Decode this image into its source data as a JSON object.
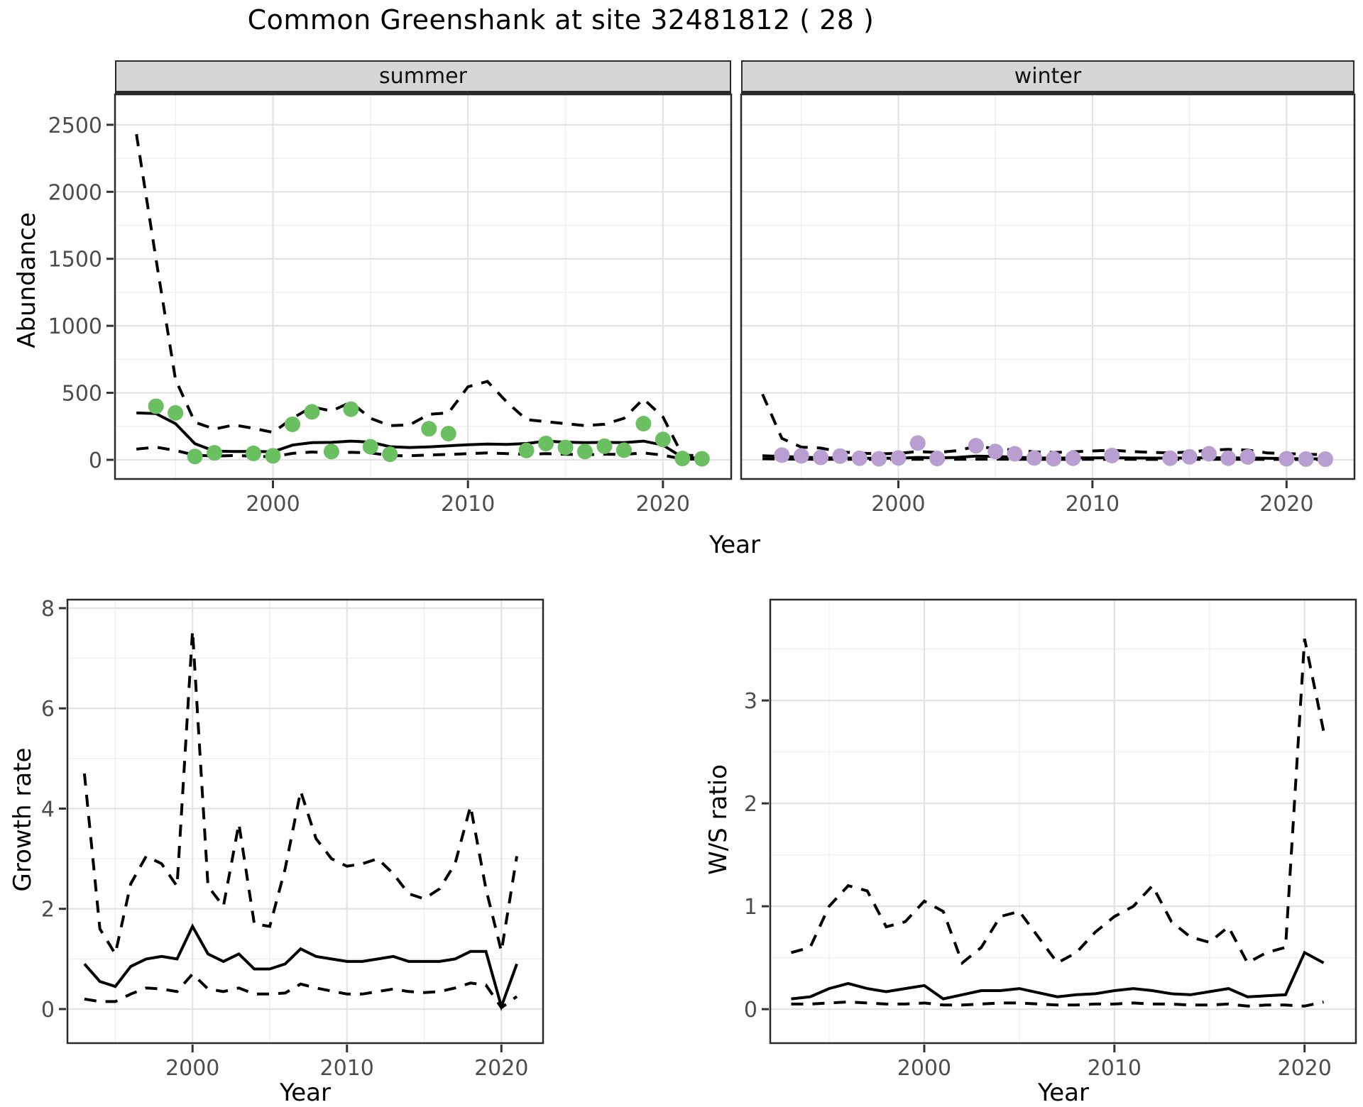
{
  "title": "Common Greenshank at site 32481812 ( 28 )",
  "top": {
    "ylabel": "Abundance",
    "xlabel": "Year",
    "facets": [
      "summer",
      "winter"
    ]
  },
  "bottom_left": {
    "ylabel": "Growth rate",
    "xlabel": "Year"
  },
  "bottom_right": {
    "ylabel": "W/S ratio",
    "xlabel": "Year"
  },
  "colors": {
    "summer_points": "#6ABF61",
    "winter_points": "#B89ED1",
    "lines": "#000000",
    "major_grid": "#e3e3e3",
    "minor_grid": "#f0f0f0",
    "panel_border": "#2a2a2a",
    "tick_text": "#4d4d4d"
  },
  "chart_data": [
    {
      "id": "abundance_summer",
      "type": "line",
      "facet_label": "summer",
      "title": "Common Greenshank at site 32481812 ( 28 )",
      "xlabel": "Year",
      "ylabel": "Abundance",
      "x_ticks": [
        2000,
        2010,
        2020
      ],
      "y_ticks": [
        0,
        500,
        1000,
        1500,
        2000,
        2500
      ],
      "xlim": [
        1991.9,
        2023.5
      ],
      "ylim": [
        -143,
        2727
      ],
      "grid": "major+minor",
      "legend": "none",
      "series": [
        {
          "name": "fitted-median",
          "style": "solid",
          "color": "#000000",
          "x": [
            1993,
            1994,
            1995,
            1996,
            1997,
            1998,
            1999,
            2000,
            2001,
            2002,
            2003,
            2004,
            2005,
            2006,
            2007,
            2008,
            2009,
            2010,
            2011,
            2012,
            2013,
            2014,
            2015,
            2016,
            2017,
            2018,
            2019,
            2020,
            2021,
            2022
          ],
          "y": [
            350,
            345,
            270,
            120,
            65,
            62,
            63,
            60,
            110,
            128,
            130,
            140,
            132,
            98,
            92,
            97,
            105,
            112,
            118,
            115,
            122,
            140,
            132,
            128,
            130,
            128,
            140,
            110,
            18,
            12
          ]
        },
        {
          "name": "upper-95ci",
          "style": "dashed",
          "color": "#000000",
          "x": [
            1993,
            1994,
            1995,
            1996,
            1997,
            1998,
            1999,
            2000,
            2001,
            2002,
            2003,
            2004,
            2005,
            2006,
            2007,
            2008,
            2009,
            2010,
            2011,
            2012,
            2013,
            2014,
            2015,
            2016,
            2017,
            2018,
            2019,
            2020,
            2021,
            2022
          ],
          "y": [
            2430,
            1500,
            600,
            280,
            230,
            260,
            235,
            205,
            310,
            395,
            365,
            430,
            310,
            255,
            260,
            340,
            350,
            545,
            585,
            430,
            300,
            285,
            270,
            255,
            265,
            310,
            455,
            320,
            35,
            30
          ]
        },
        {
          "name": "lower-95ci",
          "style": "dashed",
          "color": "#000000",
          "x": [
            1993,
            1994,
            1995,
            1996,
            1997,
            1998,
            1999,
            2000,
            2001,
            2002,
            2003,
            2004,
            2005,
            2006,
            2007,
            2008,
            2009,
            2010,
            2011,
            2012,
            2013,
            2014,
            2015,
            2016,
            2017,
            2018,
            2019,
            2020,
            2021,
            2022
          ],
          "y": [
            80,
            95,
            70,
            35,
            28,
            32,
            28,
            22,
            48,
            58,
            52,
            56,
            52,
            32,
            30,
            36,
            40,
            46,
            52,
            46,
            42,
            46,
            42,
            38,
            42,
            40,
            52,
            35,
            6,
            5
          ]
        },
        {
          "name": "observed-counts",
          "style": "points",
          "color": "#6ABF61",
          "x": [
            1994,
            1995,
            1996,
            1997,
            1999,
            2000,
            2001,
            2002,
            2003,
            2004,
            2005,
            2006,
            2008,
            2009,
            2013,
            2014,
            2015,
            2016,
            2017,
            2018,
            2019,
            2020,
            2021,
            2022
          ],
          "y": [
            400,
            350,
            25,
            52,
            48,
            30,
            265,
            358,
            62,
            378,
            98,
            42,
            232,
            196,
            70,
            122,
            92,
            62,
            102,
            72,
            270,
            152,
            10,
            8
          ]
        }
      ]
    },
    {
      "id": "abundance_winter",
      "type": "line",
      "facet_label": "winter",
      "xlabel": "Year",
      "ylabel": "Abundance",
      "x_ticks": [
        2000,
        2010,
        2020
      ],
      "y_ticks": [
        0,
        500,
        1000,
        1500,
        2000,
        2500
      ],
      "xlim": [
        1991.9,
        2023.5
      ],
      "ylim": [
        -143,
        2727
      ],
      "grid": "major+minor",
      "legend": "none",
      "series": [
        {
          "name": "fitted-median",
          "style": "solid",
          "color": "#000000",
          "x": [
            1993,
            1994,
            1995,
            1996,
            1997,
            1998,
            1999,
            2000,
            2001,
            2002,
            2003,
            2004,
            2005,
            2006,
            2007,
            2008,
            2009,
            2010,
            2011,
            2012,
            2013,
            2014,
            2015,
            2016,
            2017,
            2018,
            2019,
            2020,
            2021,
            2022
          ],
          "y": [
            30,
            25,
            20,
            15,
            15,
            12,
            12,
            12,
            18,
            15,
            18,
            28,
            25,
            20,
            15,
            13,
            14,
            15,
            16,
            14,
            13,
            13,
            14,
            16,
            15,
            14,
            12,
            10,
            8,
            7
          ]
        },
        {
          "name": "upper-95ci",
          "style": "dashed",
          "color": "#000000",
          "x": [
            1993,
            1994,
            1995,
            1996,
            1997,
            1998,
            1999,
            2000,
            2001,
            2002,
            2003,
            2004,
            2005,
            2006,
            2007,
            2008,
            2009,
            2010,
            2011,
            2012,
            2013,
            2014,
            2015,
            2016,
            2017,
            2018,
            2019,
            2020,
            2021,
            2022
          ],
          "y": [
            490,
            160,
            95,
            88,
            60,
            50,
            45,
            48,
            62,
            55,
            68,
            100,
            85,
            72,
            60,
            55,
            60,
            66,
            72,
            62,
            56,
            52,
            58,
            72,
            78,
            72,
            52,
            46,
            42,
            38
          ]
        },
        {
          "name": "lower-95ci",
          "style": "dashed",
          "color": "#000000",
          "x": [
            1993,
            1994,
            1995,
            1996,
            1997,
            1998,
            1999,
            2000,
            2001,
            2002,
            2003,
            2004,
            2005,
            2006,
            2007,
            2008,
            2009,
            2010,
            2011,
            2012,
            2013,
            2014,
            2015,
            2016,
            2017,
            2018,
            2019,
            2020,
            2021,
            2022
          ],
          "y": [
            8,
            6,
            5,
            4,
            4,
            3,
            3,
            3,
            4,
            4,
            4,
            5,
            5,
            4,
            4,
            3,
            3,
            4,
            4,
            4,
            3,
            3,
            3,
            4,
            4,
            4,
            3,
            3,
            2,
            2
          ]
        },
        {
          "name": "observed-counts",
          "style": "points",
          "color": "#B89ED1",
          "x": [
            1994,
            1995,
            1996,
            1997,
            1998,
            1999,
            2000,
            2001,
            2002,
            2004,
            2005,
            2006,
            2007,
            2008,
            2009,
            2011,
            2014,
            2015,
            2016,
            2017,
            2018,
            2020,
            2021,
            2022
          ],
          "y": [
            35,
            30,
            18,
            28,
            12,
            8,
            14,
            125,
            10,
            105,
            62,
            45,
            14,
            8,
            12,
            32,
            12,
            22,
            45,
            12,
            22,
            8,
            6,
            5
          ]
        }
      ]
    },
    {
      "id": "growth_rate",
      "type": "line",
      "xlabel": "Year",
      "ylabel": "Growth rate",
      "x_ticks": [
        2000,
        2010,
        2020
      ],
      "y_ticks": [
        0,
        2,
        4,
        6,
        8
      ],
      "xlim": [
        1991.9,
        2022.7
      ],
      "ylim": [
        -0.68,
        8.17
      ],
      "grid": "major+minor",
      "legend": "none",
      "series": [
        {
          "name": "growth-median",
          "style": "solid",
          "color": "#000000",
          "x": [
            1993,
            1994,
            1995,
            1996,
            1997,
            1998,
            1999,
            2000,
            2001,
            2002,
            2003,
            2004,
            2005,
            2006,
            2007,
            2008,
            2009,
            2010,
            2011,
            2012,
            2013,
            2014,
            2015,
            2016,
            2017,
            2018,
            2019,
            2020,
            2021
          ],
          "y": [
            0.9,
            0.55,
            0.45,
            0.85,
            1.0,
            1.05,
            1.0,
            1.65,
            1.1,
            0.95,
            1.1,
            0.8,
            0.8,
            0.9,
            1.2,
            1.05,
            1.0,
            0.95,
            0.95,
            1.0,
            1.05,
            0.95,
            0.95,
            0.95,
            1.0,
            1.15,
            1.15,
            0.05,
            0.9
          ]
        },
        {
          "name": "growth-upper-95ci",
          "style": "dashed",
          "color": "#000000",
          "x": [
            1993,
            1994,
            1995,
            1996,
            1997,
            1998,
            1999,
            2000,
            2001,
            2002,
            2003,
            2004,
            2005,
            2006,
            2007,
            2008,
            2009,
            2010,
            2011,
            2012,
            2013,
            2014,
            2015,
            2016,
            2017,
            2018,
            2019,
            2020,
            2021
          ],
          "y": [
            4.7,
            1.6,
            1.1,
            2.5,
            3.05,
            2.9,
            2.45,
            7.55,
            2.45,
            2.05,
            3.7,
            1.7,
            1.65,
            2.8,
            4.35,
            3.4,
            3.0,
            2.85,
            2.9,
            3.0,
            2.7,
            2.3,
            2.2,
            2.4,
            2.9,
            4.05,
            2.4,
            1.15,
            3.05
          ]
        },
        {
          "name": "growth-lower-95ci",
          "style": "dashed",
          "color": "#000000",
          "x": [
            1993,
            1994,
            1995,
            1996,
            1997,
            1998,
            1999,
            2000,
            2001,
            2002,
            2003,
            2004,
            2005,
            2006,
            2007,
            2008,
            2009,
            2010,
            2011,
            2012,
            2013,
            2014,
            2015,
            2016,
            2017,
            2018,
            2019,
            2020,
            2021
          ],
          "y": [
            0.2,
            0.15,
            0.15,
            0.3,
            0.42,
            0.4,
            0.35,
            0.7,
            0.4,
            0.35,
            0.42,
            0.3,
            0.3,
            0.32,
            0.5,
            0.42,
            0.36,
            0.3,
            0.3,
            0.35,
            0.4,
            0.35,
            0.33,
            0.35,
            0.42,
            0.52,
            0.48,
            0.03,
            0.25
          ]
        }
      ]
    },
    {
      "id": "ws_ratio",
      "type": "line",
      "xlabel": "Year",
      "ylabel": "W/S ratio",
      "x_ticks": [
        2000,
        2010,
        2020
      ],
      "y_ticks": [
        0,
        1,
        2,
        3
      ],
      "xlim": [
        1991.9,
        2022.7
      ],
      "ylim": [
        -0.33,
        3.98
      ],
      "grid": "major+minor",
      "legend": "none",
      "series": [
        {
          "name": "ws-median",
          "style": "solid",
          "color": "#000000",
          "x": [
            1993,
            1994,
            1995,
            1996,
            1997,
            1998,
            1999,
            2000,
            2001,
            2002,
            2003,
            2004,
            2005,
            2006,
            2007,
            2008,
            2009,
            2010,
            2011,
            2012,
            2013,
            2014,
            2015,
            2016,
            2017,
            2018,
            2019,
            2020,
            2021
          ],
          "y": [
            0.1,
            0.12,
            0.2,
            0.25,
            0.2,
            0.17,
            0.2,
            0.23,
            0.1,
            0.14,
            0.18,
            0.18,
            0.2,
            0.16,
            0.12,
            0.14,
            0.15,
            0.18,
            0.2,
            0.18,
            0.15,
            0.14,
            0.17,
            0.2,
            0.12,
            0.13,
            0.14,
            0.55,
            0.45
          ]
        },
        {
          "name": "ws-upper-95ci",
          "style": "dashed",
          "color": "#000000",
          "x": [
            1993,
            1994,
            1995,
            1996,
            1997,
            1998,
            1999,
            2000,
            2001,
            2002,
            2003,
            2004,
            2005,
            2006,
            2007,
            2008,
            2009,
            2010,
            2011,
            2012,
            2013,
            2014,
            2015,
            2016,
            2017,
            2018,
            2019,
            2020,
            2021
          ],
          "y": [
            0.55,
            0.6,
            1.0,
            1.2,
            1.15,
            0.8,
            0.85,
            1.05,
            0.95,
            0.45,
            0.6,
            0.9,
            0.95,
            0.7,
            0.45,
            0.55,
            0.75,
            0.9,
            1.0,
            1.2,
            0.85,
            0.7,
            0.65,
            0.8,
            0.45,
            0.55,
            0.6,
            3.6,
            2.7
          ]
        },
        {
          "name": "ws-lower-95ci",
          "style": "dashed",
          "color": "#000000",
          "x": [
            1993,
            1994,
            1995,
            1996,
            1997,
            1998,
            1999,
            2000,
            2001,
            2002,
            2003,
            2004,
            2005,
            2006,
            2007,
            2008,
            2009,
            2010,
            2011,
            2012,
            2013,
            2014,
            2015,
            2016,
            2017,
            2018,
            2019,
            2020,
            2021
          ],
          "y": [
            0.05,
            0.05,
            0.06,
            0.07,
            0.06,
            0.05,
            0.05,
            0.06,
            0.04,
            0.04,
            0.05,
            0.06,
            0.06,
            0.05,
            0.04,
            0.04,
            0.05,
            0.05,
            0.06,
            0.05,
            0.05,
            0.04,
            0.04,
            0.05,
            0.03,
            0.04,
            0.04,
            0.03,
            0.07
          ]
        }
      ]
    }
  ]
}
